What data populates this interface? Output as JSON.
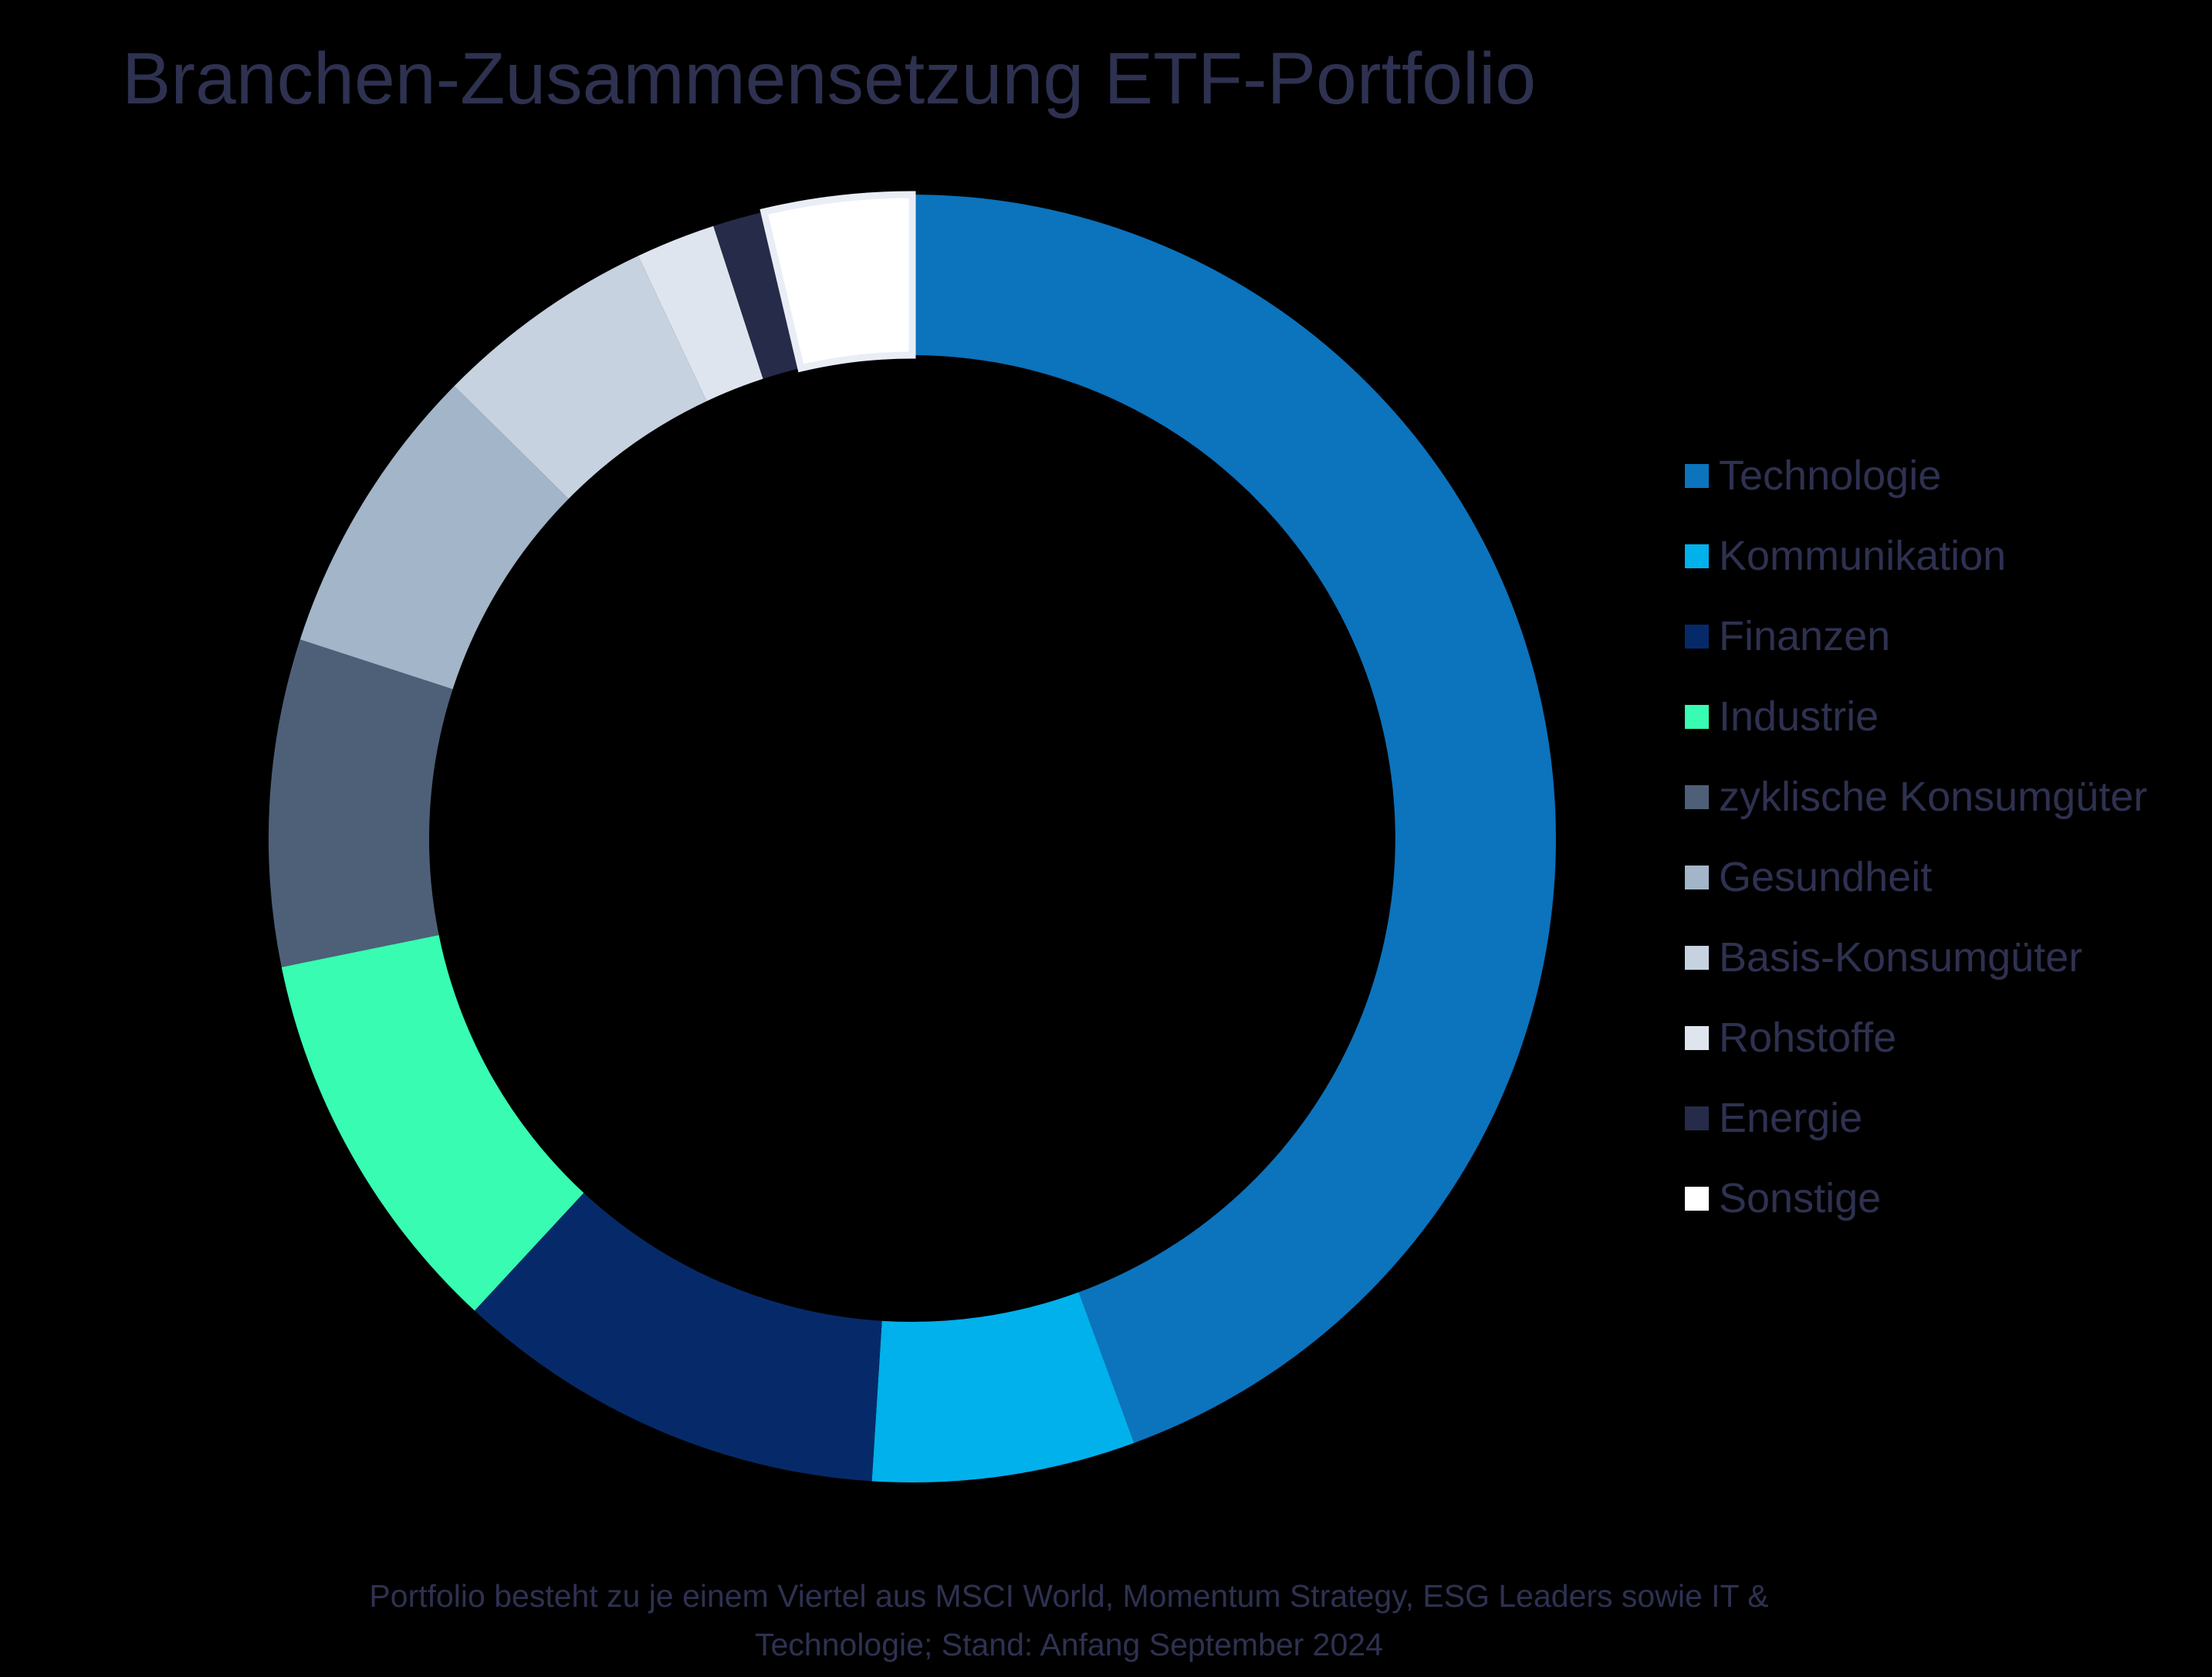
{
  "title": "Branchen-Zusammensetzung ETF-Portfolio",
  "footer": {
    "line1": "Portfolio besteht zu je einem Viertel aus MSCI World, Momentum Strategy, ESG Leaders sowie IT &",
    "line2": "Technologie; Stand: Anfang September 2024"
  },
  "colors": {
    "background": "#000000",
    "text": "#2e3150",
    "sonstige_stroke": "#e9edf5"
  },
  "chart_data": {
    "type": "pie",
    "subtype": "donut",
    "title": "Branchen-Zusammensetzung ETF-Portfolio",
    "labels": [
      "Technologie",
      "Kommunikation",
      "Finanzen",
      "Industrie",
      "zyklische Konsumgüter",
      "Gesundheit",
      "Basis-Konsumgüter",
      "Rohstoffe",
      "Energie",
      "Sonstige"
    ],
    "values": [
      44.4,
      6.6,
      10.9,
      9.9,
      8.2,
      7.4,
      5.6,
      2.0,
      1.3,
      3.7
    ],
    "unit": "percent-of-portfolio (estimated from arc angles, no numeric labels shown)",
    "colors": [
      "#0c73bd",
      "#00b1ec",
      "#062a69",
      "#38fcb1",
      "#4d6078",
      "#a2b5c9",
      "#c6d2df",
      "#dee5ee",
      "#262b4a",
      "#ffffff"
    ],
    "slice_strokes": [
      null,
      null,
      null,
      null,
      null,
      null,
      null,
      null,
      null,
      "#e9edf5"
    ],
    "start_angle_deg": 0,
    "direction": "clockwise",
    "inner_radius_ratio": 0.75,
    "grid": false,
    "legend_position": "middle-right",
    "annotation": "Portfolio besteht zu je einem Viertel aus MSCI World, Momentum Strategy, ESG Leaders sowie IT & Technologie; Stand: Anfang September 2024"
  }
}
